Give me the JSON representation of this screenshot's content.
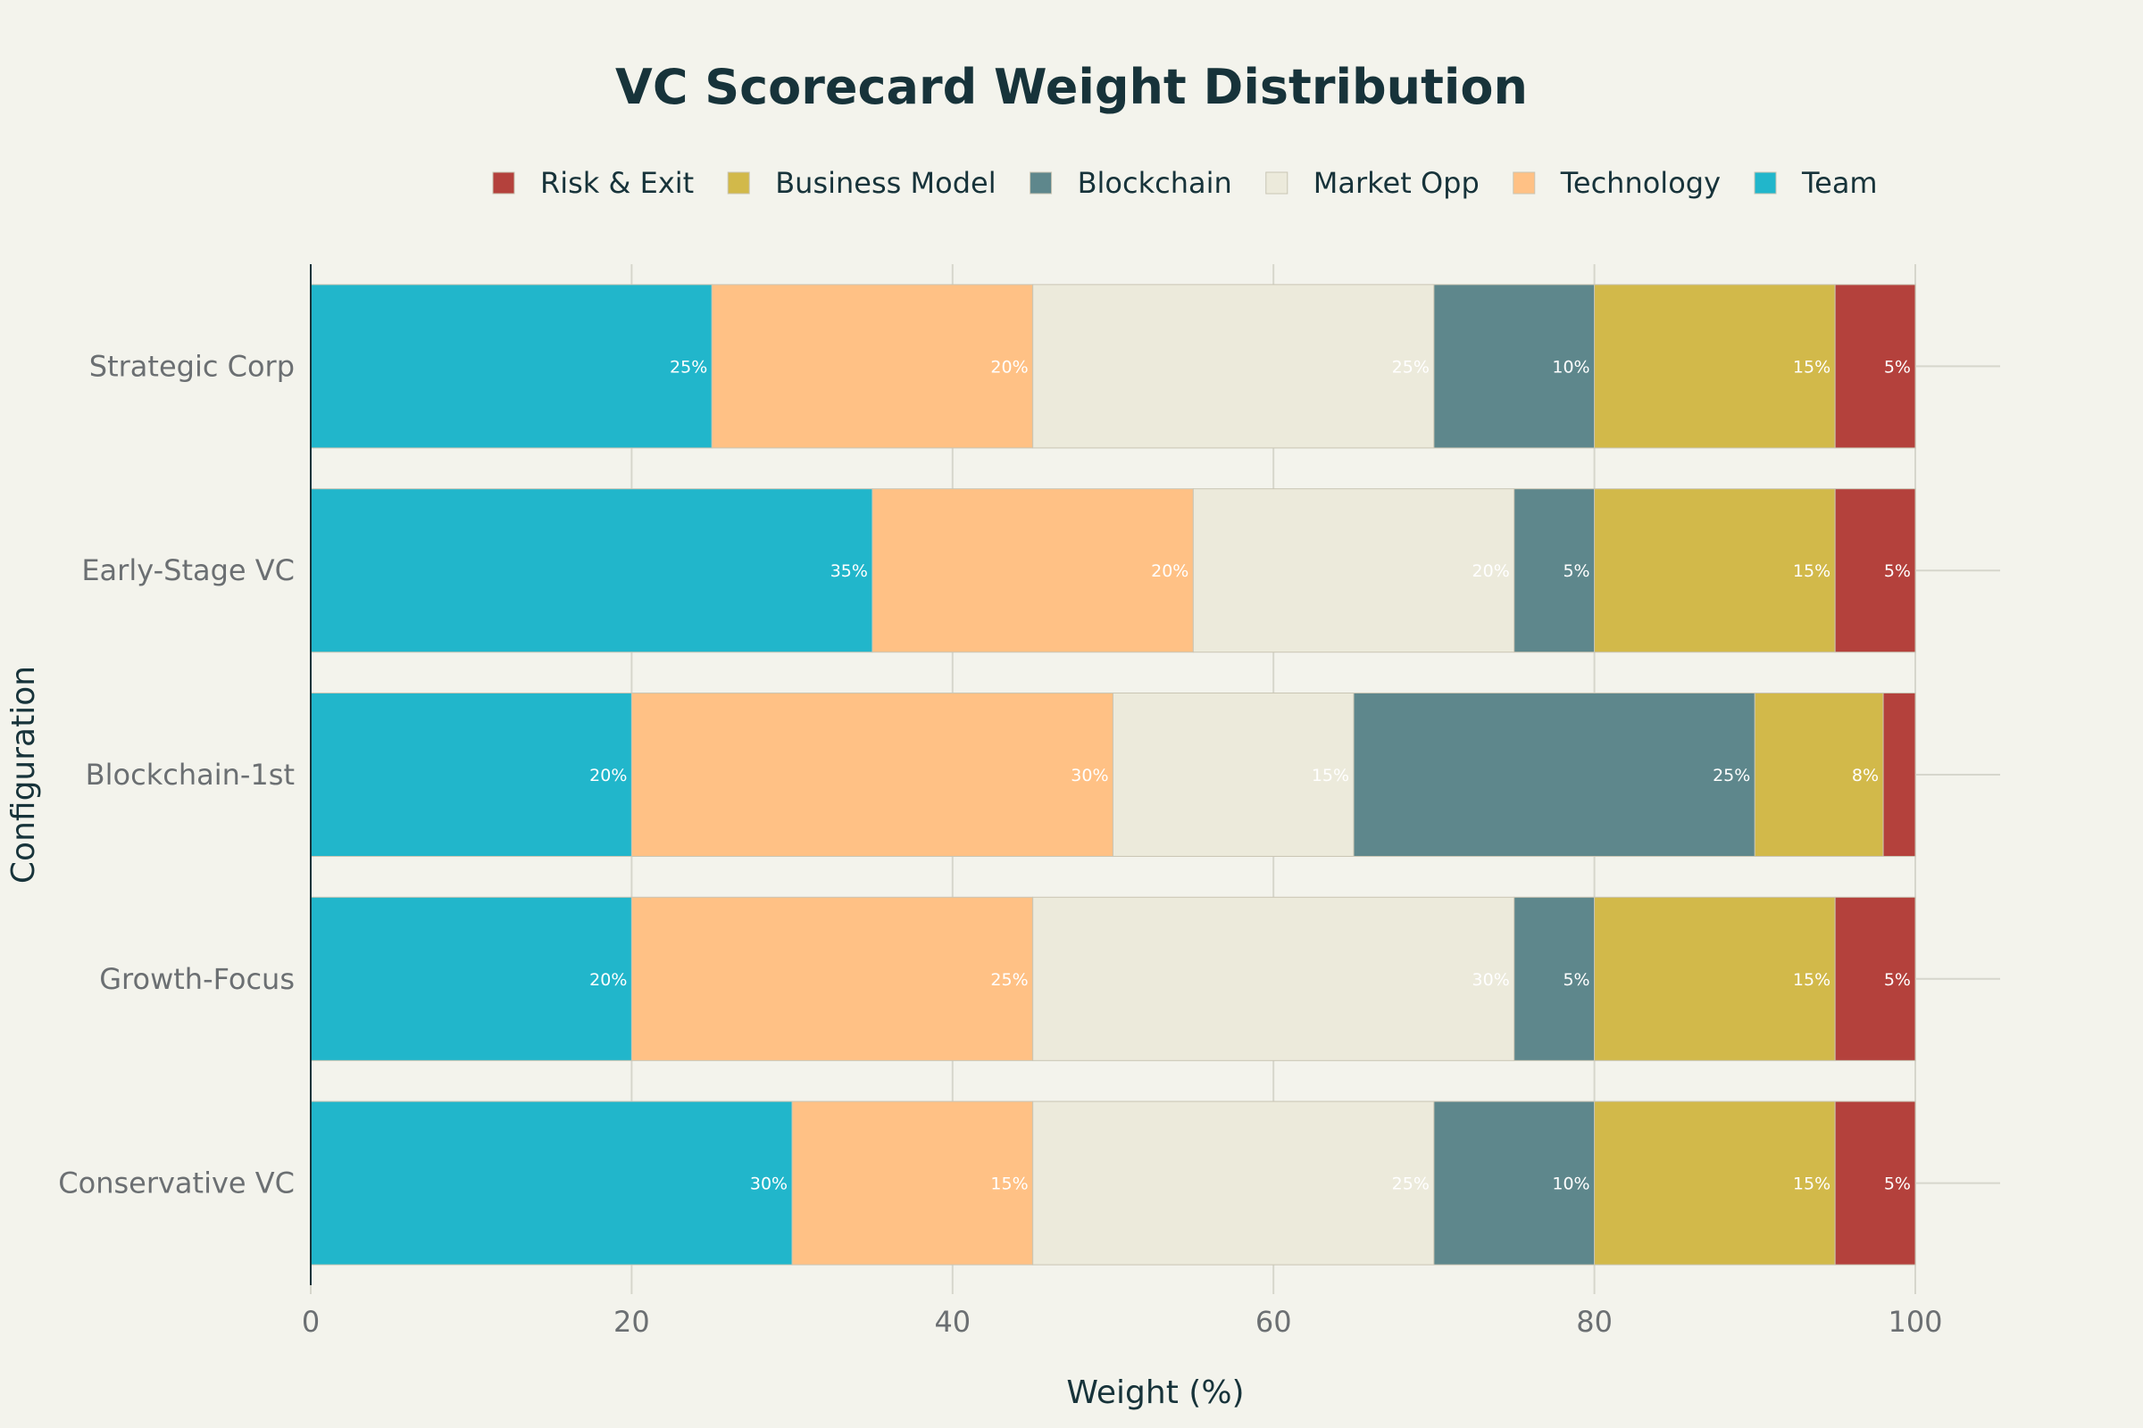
{
  "chart_data": {
    "type": "bar",
    "orientation": "horizontal",
    "stacked": true,
    "title": "VC Scorecard Weight Distribution",
    "xlabel": "Weight (%)",
    "ylabel": "Configuration",
    "xlim": [
      0,
      100
    ],
    "x_ticks": [
      "0",
      "20",
      "40",
      "60",
      "80",
      "100"
    ],
    "grid": true,
    "legend_position": "top",
    "categories": [
      "Strategic Corp",
      "Early-Stage VC",
      "Blockchain-1st",
      "Growth-Focus",
      "Conservative VC"
    ],
    "series": [
      {
        "name": "Team",
        "color": "#21b6cb",
        "values": [
          25,
          35,
          20,
          20,
          30
        ],
        "labels": [
          "25%",
          "35%",
          "20%",
          "20%",
          "30%"
        ]
      },
      {
        "name": "Technology",
        "color": "#ffc185",
        "values": [
          20,
          20,
          30,
          25,
          15
        ],
        "labels": [
          "20%",
          "20%",
          "30%",
          "25%",
          "15%"
        ]
      },
      {
        "name": "Market Opp",
        "color": "#eceadb",
        "values": [
          25,
          20,
          15,
          30,
          25
        ],
        "labels": [
          "25%",
          "20%",
          "15%",
          "30%",
          "25%"
        ]
      },
      {
        "name": "Blockchain",
        "color": "#5e878c",
        "values": [
          10,
          5,
          25,
          5,
          10
        ],
        "labels": [
          "10%",
          "5%",
          "25%",
          "5%",
          "10%"
        ]
      },
      {
        "name": "Business Model",
        "color": "#d2b94a",
        "values": [
          15,
          15,
          8,
          15,
          15
        ],
        "labels": [
          "15%",
          "15%",
          "8%",
          "15%",
          "15%"
        ]
      },
      {
        "name": "Risk & Exit",
        "color": "#b4413c",
        "values": [
          5,
          5,
          2,
          5,
          5
        ],
        "labels": [
          "5%",
          "5%",
          "",
          "5%",
          "5%"
        ]
      }
    ],
    "legend_order": [
      "Risk & Exit",
      "Business Model",
      "Blockchain",
      "Market Opp",
      "Technology",
      "Team"
    ]
  }
}
